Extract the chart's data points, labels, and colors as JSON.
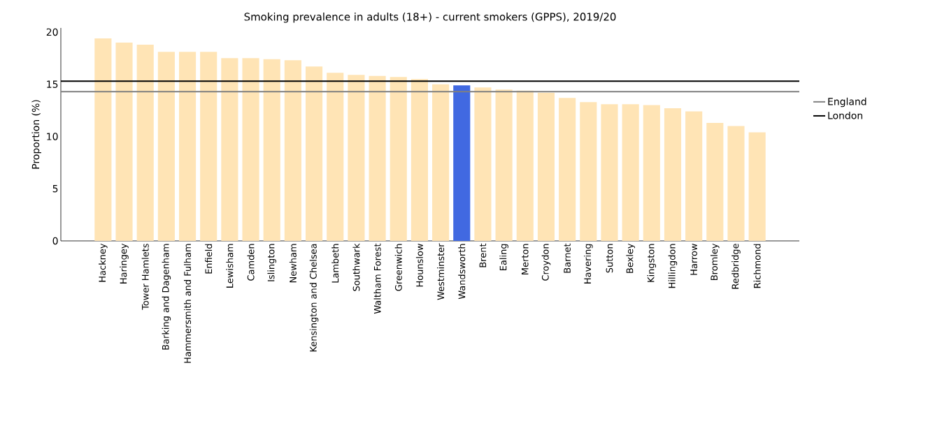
{
  "chart_data": {
    "type": "bar",
    "title": "Smoking prevalence in adults (18+) - current smokers (GPPS), 2019/20",
    "ylabel": "Proportion (%)",
    "categories": [
      "Hackney",
      "Haringey",
      "Tower Hamlets",
      "Barking and Dagenham",
      "Hammersmith and Fulham",
      "Enfield",
      "Lewisham",
      "Camden",
      "Islington",
      "Newham",
      "Kensington and Chelsea",
      "Lambeth",
      "Southwark",
      "Waltham Forest",
      "Greenwich",
      "Hounslow",
      "Westminster",
      "Wandsworth",
      "Brent",
      "Ealing",
      "Merton",
      "Croydon",
      "Barnet",
      "Havering",
      "Sutton",
      "Bexley",
      "Kingston",
      "Hillingdon",
      "Harrow",
      "Bromley",
      "Redbridge",
      "Richmond"
    ],
    "values": [
      19.4,
      19.0,
      18.8,
      18.1,
      18.1,
      18.1,
      17.5,
      17.5,
      17.4,
      17.3,
      16.7,
      16.1,
      15.9,
      15.8,
      15.7,
      15.5,
      15.0,
      14.9,
      14.7,
      14.5,
      14.4,
      14.2,
      13.7,
      13.3,
      13.1,
      13.1,
      13.0,
      12.7,
      12.4,
      11.3,
      11.0,
      10.4
    ],
    "colors": [
      "#ffe4b5",
      "#ffe4b5",
      "#ffe4b5",
      "#ffe4b5",
      "#ffe4b5",
      "#ffe4b5",
      "#ffe4b5",
      "#ffe4b5",
      "#ffe4b5",
      "#ffe4b5",
      "#ffe4b5",
      "#ffe4b5",
      "#ffe4b5",
      "#ffe4b5",
      "#ffe4b5",
      "#ffe4b5",
      "#ffe4b5",
      "#4169e1",
      "#ffe4b5",
      "#ffe4b5",
      "#ffe4b5",
      "#ffe4b5",
      "#ffe4b5",
      "#ffe4b5",
      "#ffe4b5",
      "#ffe4b5",
      "#ffe4b5",
      "#ffe4b5",
      "#ffe4b5",
      "#ffe4b5",
      "#ffe4b5",
      "#ffe4b5"
    ],
    "ylim": [
      0,
      20.4
    ],
    "yticks": [
      0,
      5,
      10,
      15,
      20
    ],
    "ref_lines": [
      {
        "axis": "y",
        "value": 14.3,
        "label": "England",
        "color": "#808080"
      },
      {
        "axis": "y",
        "value": 15.3,
        "label": "London",
        "color": "#000000"
      }
    ],
    "grid": false,
    "legend": "right"
  }
}
